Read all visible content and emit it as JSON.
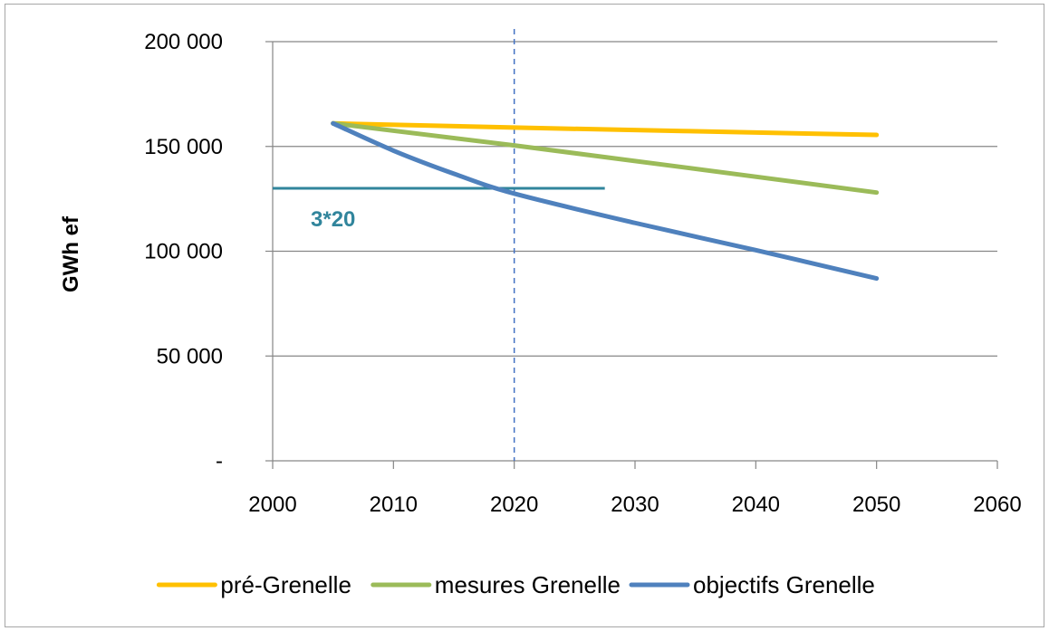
{
  "chart_data": {
    "type": "line",
    "title": "",
    "xlabel": "",
    "ylabel": "GWh ef",
    "xlim": [
      2000,
      2060
    ],
    "ylim": [
      0,
      200000
    ],
    "x_ticks": [
      2000,
      2010,
      2020,
      2030,
      2040,
      2050,
      2060
    ],
    "x_tick_labels": [
      "2000",
      "2010",
      "2020",
      "2030",
      "2040",
      "2050",
      "2060"
    ],
    "y_ticks": [
      0,
      50000,
      100000,
      150000,
      200000
    ],
    "y_tick_labels": [
      "-",
      "50 000",
      "100 000",
      "150 000",
      "200 000"
    ],
    "grid": "horizontal",
    "legend_position": "bottom",
    "series": [
      {
        "name": "pré-Grenelle",
        "color": "#ffc000",
        "x": [
          2005,
          2020,
          2050
        ],
        "values": [
          161000,
          159000,
          155500
        ]
      },
      {
        "name": "mesures Grenelle",
        "color": "#9bbb59",
        "x": [
          2005,
          2020,
          2050
        ],
        "values": [
          161000,
          150500,
          128000
        ]
      },
      {
        "name": "objectifs Grenelle",
        "color": "#4f81bd",
        "x": [
          2005,
          2010,
          2015,
          2020,
          2030,
          2040,
          2050
        ],
        "values": [
          161000,
          148000,
          137000,
          127500,
          113500,
          100500,
          87000
        ]
      }
    ],
    "reference_lines": [
      {
        "orientation": "vertical",
        "x": 2020,
        "style": "dashed",
        "color": "#4472c4"
      },
      {
        "orientation": "horizontal",
        "y": 130000,
        "x_from": 2000,
        "x_to": 2027.5,
        "color": "#31859c",
        "label": "3*20"
      }
    ]
  }
}
